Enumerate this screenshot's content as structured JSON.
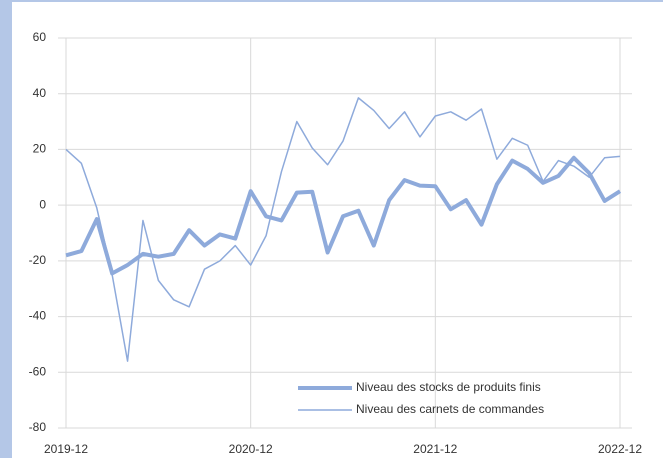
{
  "chart_data": {
    "type": "line",
    "categories": [
      "2019-12",
      null,
      null,
      null,
      null,
      null,
      null,
      null,
      null,
      null,
      null,
      null,
      "2020-12",
      null,
      null,
      null,
      null,
      null,
      null,
      null,
      null,
      null,
      null,
      null,
      "2021-12",
      null,
      null,
      null,
      null,
      null,
      null,
      null,
      null,
      null,
      null,
      null,
      "2022-12"
    ],
    "series": [
      {
        "name": "Niveau des stocks de produits finis",
        "color": "#8eaadb",
        "width": 4,
        "values": [
          -18,
          -16.5,
          -5,
          -24.5,
          -21.5,
          -17.5,
          -18.5,
          -17.5,
          -9,
          -14.5,
          -10.5,
          -12,
          5,
          -4,
          -5.5,
          4.5,
          4.8,
          -17,
          -4,
          -2,
          -14.5,
          1.8,
          9,
          7,
          6.8,
          -1.5,
          1.8,
          -7,
          7.5,
          16,
          13,
          8,
          10.5,
          17,
          11.5,
          1.5,
          5
        ]
      },
      {
        "name": "Niveau des carnets de commandes",
        "color": "#8eaadb",
        "width": 1.5,
        "values": [
          20,
          15,
          -1,
          -25,
          -56,
          -5.5,
          -27,
          -34,
          -36.5,
          -23,
          -20,
          -14.5,
          -21.5,
          -11,
          12,
          30,
          20.5,
          14.5,
          23,
          38.5,
          34,
          27.5,
          33.5,
          24.5,
          32,
          33.5,
          30.5,
          34.5,
          16.5,
          24,
          21.5,
          8.5,
          16,
          14,
          10,
          17,
          17.5
        ]
      }
    ],
    "ylim": [
      -80,
      60
    ],
    "yticks": [
      -80,
      -60,
      -40,
      -20,
      0,
      20,
      40,
      60
    ],
    "grid": true,
    "legend": "lower right"
  }
}
